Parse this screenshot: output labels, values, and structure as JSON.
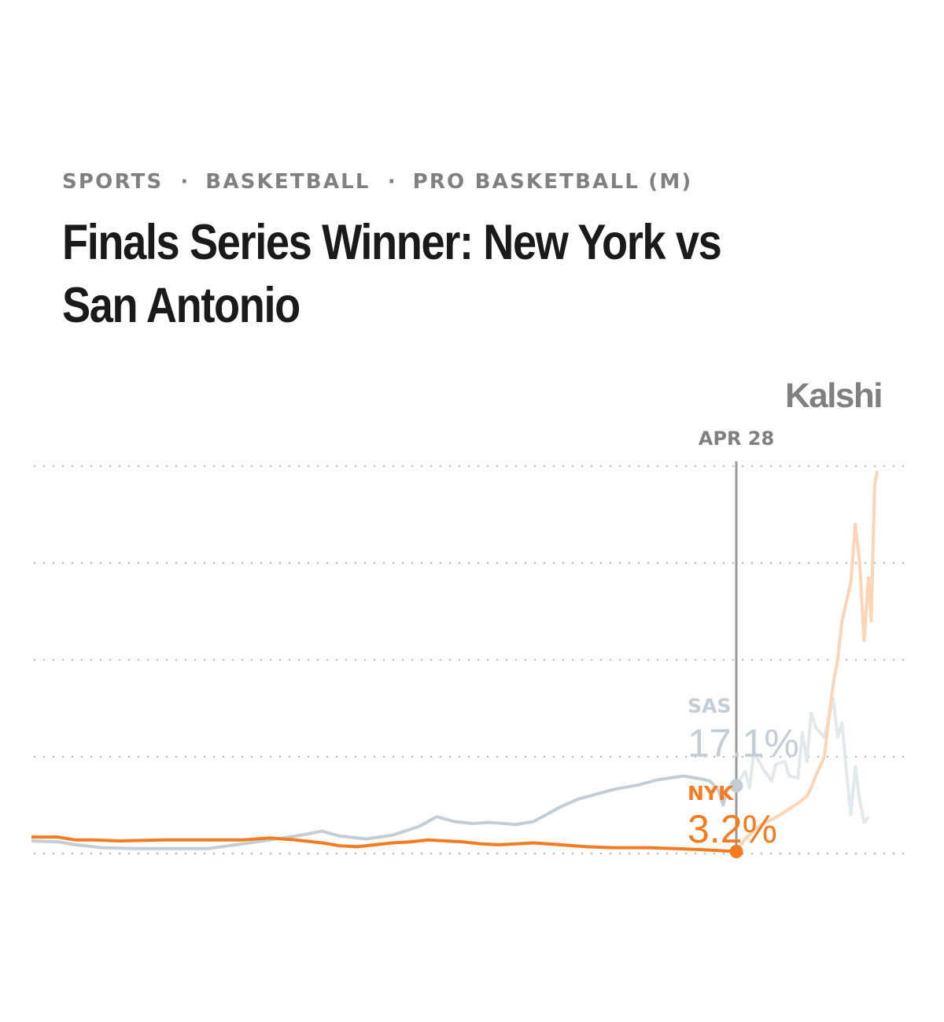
{
  "breadcrumb": {
    "items": [
      "SPORTS",
      "BASKETBALL",
      "PRO BASKETBALL (M)"
    ],
    "separator": "·"
  },
  "title": "Finals Series Winner: New York vs San Antonio",
  "brand": "Kalshi",
  "colors": {
    "nyk": "#f47b20",
    "nyk_projection": "#fbd5b5",
    "sas": "#c3cdd3",
    "sas_projection": "#e3e8eb",
    "marker_line": "#9a9a9a",
    "grid": "#bdbdbd",
    "label_gray": "#808080"
  },
  "chart_data": {
    "type": "line",
    "marker": {
      "label": "APR 28",
      "x": 0.8
    },
    "ylim": [
      0,
      40
    ],
    "gridlines": [
      0,
      10,
      20,
      30,
      40
    ],
    "grid": "dotted horizontal",
    "series": [
      {
        "name": "SAS",
        "value_label": "17.1%",
        "role": "projection-label",
        "history": [
          [
            0.0,
            1.3
          ],
          [
            0.03,
            1.2
          ],
          [
            0.05,
            0.9
          ],
          [
            0.08,
            0.6
          ],
          [
            0.12,
            0.5
          ],
          [
            0.16,
            0.5
          ],
          [
            0.2,
            0.5
          ],
          [
            0.24,
            1.0
          ],
          [
            0.27,
            1.4
          ],
          [
            0.3,
            1.8
          ],
          [
            0.33,
            2.3
          ],
          [
            0.35,
            1.8
          ],
          [
            0.38,
            1.5
          ],
          [
            0.41,
            1.9
          ],
          [
            0.44,
            2.8
          ],
          [
            0.46,
            3.8
          ],
          [
            0.48,
            3.3
          ],
          [
            0.5,
            3.1
          ],
          [
            0.52,
            3.2
          ],
          [
            0.55,
            3.0
          ],
          [
            0.57,
            3.3
          ],
          [
            0.6,
            4.8
          ],
          [
            0.62,
            5.6
          ],
          [
            0.64,
            6.1
          ],
          [
            0.66,
            6.6
          ],
          [
            0.69,
            7.1
          ],
          [
            0.71,
            7.6
          ],
          [
            0.74,
            8.0
          ],
          [
            0.76,
            7.7
          ],
          [
            0.77,
            7.5
          ],
          [
            0.78,
            6.5
          ],
          [
            0.785,
            5.0
          ],
          [
            0.79,
            6.8
          ],
          [
            0.8,
            7.0
          ]
        ],
        "projection": [
          [
            0.8,
            7.0
          ],
          [
            0.81,
            8.5
          ],
          [
            0.815,
            6.8
          ],
          [
            0.82,
            10.5
          ],
          [
            0.83,
            8.8
          ],
          [
            0.84,
            7.5
          ],
          [
            0.845,
            9.2
          ],
          [
            0.855,
            9.5
          ],
          [
            0.86,
            8.0
          ],
          [
            0.87,
            7.8
          ],
          [
            0.875,
            12.5
          ],
          [
            0.88,
            9.5
          ],
          [
            0.885,
            14.5
          ],
          [
            0.89,
            13.0
          ],
          [
            0.9,
            12.0
          ],
          [
            0.91,
            16.0
          ],
          [
            0.915,
            12.0
          ],
          [
            0.92,
            13.5
          ],
          [
            0.925,
            8.5
          ],
          [
            0.93,
            4.0
          ],
          [
            0.935,
            9.0
          ],
          [
            0.94,
            5.5
          ],
          [
            0.945,
            3.2
          ],
          [
            0.95,
            3.8
          ]
        ]
      },
      {
        "name": "NYK",
        "value_label": "3.2%",
        "role": "projection-label",
        "history": [
          [
            0.0,
            1.7
          ],
          [
            0.03,
            1.7
          ],
          [
            0.05,
            1.4
          ],
          [
            0.07,
            1.4
          ],
          [
            0.1,
            1.3
          ],
          [
            0.15,
            1.4
          ],
          [
            0.2,
            1.4
          ],
          [
            0.24,
            1.4
          ],
          [
            0.27,
            1.6
          ],
          [
            0.3,
            1.4
          ],
          [
            0.33,
            1.1
          ],
          [
            0.35,
            0.8
          ],
          [
            0.37,
            0.7
          ],
          [
            0.39,
            0.9
          ],
          [
            0.41,
            1.1
          ],
          [
            0.43,
            1.2
          ],
          [
            0.45,
            1.4
          ],
          [
            0.47,
            1.3
          ],
          [
            0.49,
            1.2
          ],
          [
            0.51,
            1.0
          ],
          [
            0.53,
            0.9
          ],
          [
            0.55,
            1.0
          ],
          [
            0.57,
            1.1
          ],
          [
            0.6,
            0.9
          ],
          [
            0.63,
            0.7
          ],
          [
            0.66,
            0.6
          ],
          [
            0.7,
            0.6
          ],
          [
            0.73,
            0.5
          ],
          [
            0.76,
            0.4
          ],
          [
            0.78,
            0.3
          ],
          [
            0.8,
            0.2
          ]
        ],
        "projection": [
          [
            0.8,
            0.2
          ],
          [
            0.81,
            1.5
          ],
          [
            0.82,
            2.4
          ],
          [
            0.83,
            3.1
          ],
          [
            0.84,
            3.5
          ],
          [
            0.85,
            4.0
          ],
          [
            0.86,
            4.6
          ],
          [
            0.87,
            5.2
          ],
          [
            0.88,
            5.9
          ],
          [
            0.885,
            6.8
          ],
          [
            0.89,
            8.0
          ],
          [
            0.9,
            10.0
          ],
          [
            0.905,
            14.0
          ],
          [
            0.91,
            17.5
          ],
          [
            0.915,
            20.0
          ],
          [
            0.92,
            24.0
          ],
          [
            0.925,
            26.0
          ],
          [
            0.93,
            28.0
          ],
          [
            0.935,
            34.0
          ],
          [
            0.94,
            30.0
          ],
          [
            0.945,
            22.0
          ],
          [
            0.95,
            28.5
          ],
          [
            0.953,
            24.0
          ],
          [
            0.957,
            38.0
          ],
          [
            0.96,
            39.5
          ]
        ]
      }
    ]
  }
}
